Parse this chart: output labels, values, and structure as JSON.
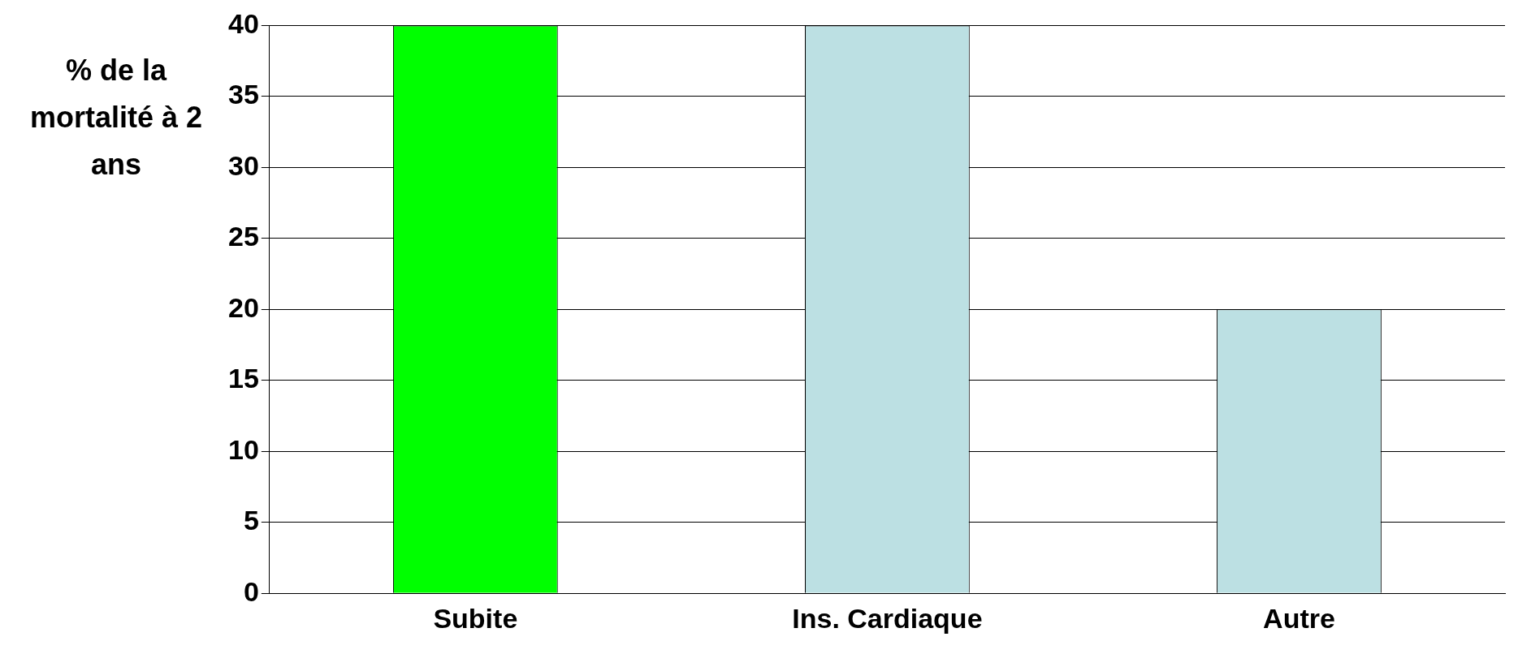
{
  "chart_data": {
    "type": "bar",
    "ylabel": "% de la mortalité à 2 ans",
    "categories": [
      "Subite",
      "Ins. Cardiaque",
      "Autre"
    ],
    "values": [
      40,
      40,
      20
    ],
    "colors": [
      "#00ff00",
      "#bce0e3",
      "#bce0e3"
    ],
    "ylim": [
      0,
      40
    ],
    "yticks": [
      0,
      5,
      10,
      15,
      20,
      25,
      30,
      35,
      40
    ],
    "grid": "y",
    "legend": false
  }
}
